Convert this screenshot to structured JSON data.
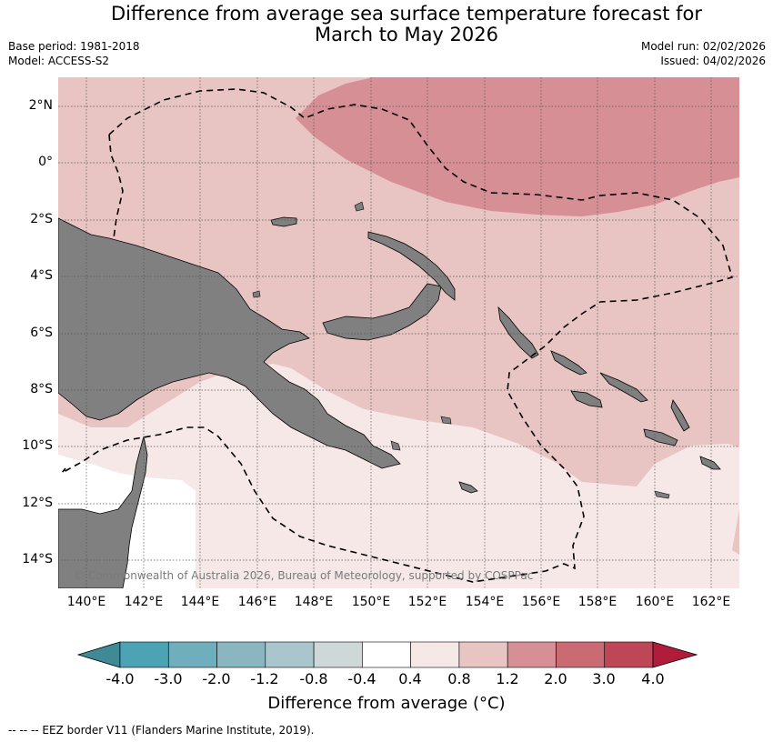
{
  "title": {
    "line1": "Difference from average sea surface temperature forecast for",
    "line2": "March to May 2026"
  },
  "meta": {
    "base_period": "Base period: 1981-2018",
    "model": "Model: ACCESS-S2",
    "model_run": "Model run: 02/02/2026",
    "issued": "Issued: 04/02/2026"
  },
  "map": {
    "lat_labels": [
      "2°N",
      "0°",
      "2°S",
      "4°S",
      "6°S",
      "8°S",
      "10°S",
      "12°S",
      "14°S"
    ],
    "lon_labels": [
      "140°E",
      "142°E",
      "144°E",
      "146°E",
      "148°E",
      "150°E",
      "152°E",
      "154°E",
      "156°E",
      "158°E",
      "160°E",
      "162°E"
    ],
    "colors": {
      "land": "#808080",
      "anomaly_0_4_to_0_8": "#f5e8e7",
      "anomaly_0_8_to_1_2": "#e8c5c2",
      "anomaly_1_2_to_2_0": "#d78f96"
    },
    "copyright": "© Commonwealth of Australia 2026, Bureau of Meteorology, supported by COSPPac"
  },
  "colorbar": {
    "ticks": [
      "-4.0",
      "-3.0",
      "-2.0",
      "-1.2",
      "-0.8",
      "-0.4",
      "0.4",
      "0.8",
      "1.2",
      "2.0",
      "3.0",
      "4.0"
    ],
    "colors": [
      "#3f8a96",
      "#4ca3b3",
      "#6eaebd",
      "#8ab6c2",
      "#a8c6cb",
      "#cfd8d9",
      "#ffffff",
      "#f5e8e7",
      "#e8c5c2",
      "#d78f96",
      "#ca6a73",
      "#be4757",
      "#b11c3a"
    ],
    "label": "Difference from average (°C)"
  },
  "legend_note": "--  --  -- EEZ border V11 (Flanders Marine Institute, 2019)."
}
